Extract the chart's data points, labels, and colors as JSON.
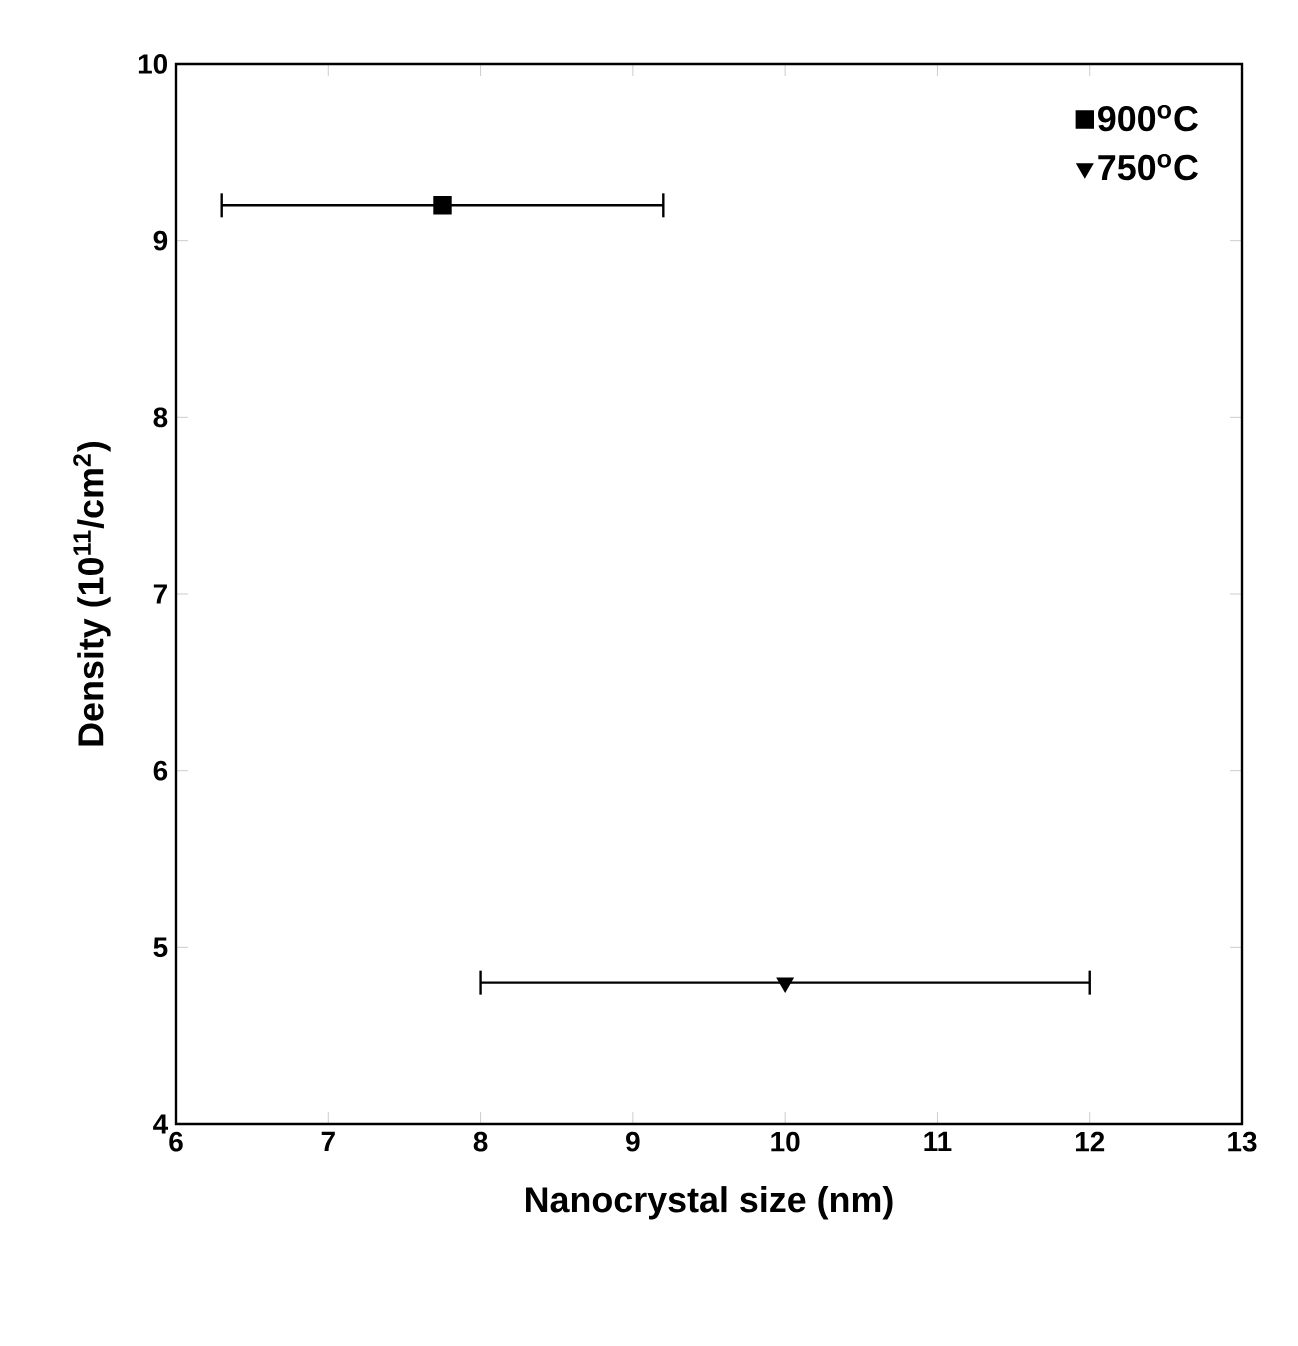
{
  "chart_data": {
    "type": "scatter",
    "xlabel": "Nanocrystal size (nm)",
    "ylabel": "Density (10$^{11}$/cm$^{2}$)",
    "series": [
      {
        "name": "900$^{o}$C",
        "color": "#000000",
        "marker": "square",
        "x": [
          7.75
        ],
        "values": [
          9.2
        ],
        "xerrors": [
          [
            6.3,
            9.2
          ]
        ]
      },
      {
        "name": "750$^{o}$C",
        "color": "#000000",
        "marker": "triangle",
        "x": [
          10
        ],
        "values": [
          4.8
        ],
        "xerrors": [
          2
        ]
      }
    ],
    "xlim": [
      6,
      13
    ],
    "ylim": [
      4,
      10
    ],
    "xticks": [
      6,
      7,
      8,
      9,
      10,
      11,
      12,
      13
    ],
    "yticks": [
      4,
      5,
      6,
      7,
      8,
      9,
      10
    ],
    "legend": "top right",
    "grid": false
  }
}
